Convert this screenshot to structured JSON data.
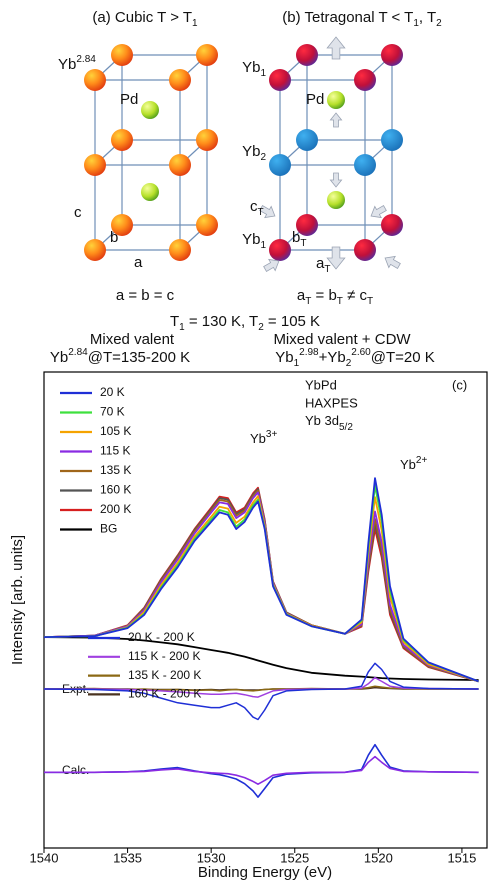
{
  "diagram": {
    "cubic": {
      "title": [
        "(a) Cubic T > T",
        "1"
      ],
      "yb_label": [
        "Yb",
        "2.84"
      ],
      "pd_label": "Pd",
      "axis_c": "c",
      "axis_b": "b",
      "axis_a": "a",
      "relation": "a = b = c"
    },
    "tetragonal": {
      "title": [
        "(b) Tetragonal T < T",
        "1",
        ", T",
        "2"
      ],
      "yb1_top": [
        "Yb",
        "1"
      ],
      "pd_label": "Pd",
      "yb2": [
        "Yb",
        "2"
      ],
      "axis_c": [
        "c",
        "T"
      ],
      "yb1_bottom": [
        "Yb",
        "1"
      ],
      "axis_b": [
        "b",
        "T"
      ],
      "axis_a": [
        "a",
        "T"
      ],
      "relation": [
        "a",
        "T",
        " = b",
        "T",
        " ≠ c",
        "T"
      ]
    },
    "temperatures": [
      "T",
      "1",
      " = 130 K, T",
      "2",
      " = 105 K"
    ],
    "cubic_phase": {
      "name": "Mixed valent",
      "valence": [
        "Yb",
        "2.84",
        "@T=135-200 K"
      ]
    },
    "tetragonal_phase": {
      "name": "Mixed valent + CDW",
      "valence": [
        "Yb",
        "1",
        "2.98",
        "+Yb",
        "2",
        "2.60",
        "@T=20 K"
      ]
    }
  },
  "chart_data": {
    "type": "line",
    "xlabel": "Binding Energy (eV)",
    "ylabel": "Intensity [arb. units]",
    "xlim": [
      1540,
      1513.5
    ],
    "xticks": [
      1540,
      1535,
      1530,
      1525,
      1520,
      1515
    ],
    "ylim": [
      0,
      100
    ],
    "annotations": {
      "yb3": [
        "Yb",
        "3+"
      ],
      "sample": "YbPd",
      "method": "HAXPES",
      "core": [
        "Yb 3d",
        "5/2"
      ],
      "panel": "(c)",
      "yb2": [
        "Yb",
        "2+"
      ],
      "expt": "Expt.",
      "calc": "Calc."
    },
    "x": [
      1540,
      1537,
      1535,
      1534,
      1533,
      1532,
      1531,
      1530,
      1529.5,
      1529,
      1528.5,
      1528,
      1527.5,
      1527.2,
      1526.8,
      1526.3,
      1525.5,
      1524,
      1522,
      1521,
      1520.6,
      1520.2,
      1519.8,
      1519.3,
      1518.5,
      1517,
      1514
    ],
    "series": [
      {
        "name": "20 K",
        "color": "#1f2fd6",
        "values": [
          44.3,
          44.5,
          46.2,
          49,
          54.4,
          59,
          64.5,
          68.5,
          70.5,
          70,
          67,
          68.5,
          71.5,
          72.8,
          67,
          55,
          49,
          46.6,
          45,
          48,
          64,
          77.7,
          70,
          55,
          44,
          39,
          35
        ]
      },
      {
        "name": "70 K",
        "color": "#3ee03e",
        "values": [
          44.3,
          44.5,
          46.3,
          49.2,
          54.7,
          59.4,
          64.9,
          69,
          71,
          70.5,
          67.5,
          69,
          72,
          73.2,
          67.3,
          55.2,
          49.1,
          46.6,
          45,
          47.8,
          63.1,
          76.1,
          68.7,
          54.1,
          43.7,
          38.9,
          35
        ]
      },
      {
        "name": "105 K",
        "color": "#f5a300",
        "values": [
          44.3,
          44.5,
          46.4,
          49.6,
          55.2,
          59.9,
          65.4,
          69.6,
          71.7,
          71.3,
          68.3,
          69.6,
          72.6,
          73.9,
          67.7,
          55.4,
          49.2,
          46.7,
          45,
          47.4,
          61.8,
          73.7,
          66.7,
          52.8,
          43.3,
          38.6,
          35
        ]
      },
      {
        "name": "115 K",
        "color": "#8a2be2",
        "values": [
          44.3,
          44.6,
          46.6,
          50,
          55.8,
          60.6,
          66.1,
          70.5,
          72.6,
          72.3,
          69.3,
          70.5,
          73.5,
          74.7,
          68.3,
          55.7,
          49.3,
          46.7,
          45,
          47,
          60.1,
          70.7,
          64.2,
          51.1,
          42.7,
          38.4,
          35
        ]
      },
      {
        "name": "135 K",
        "color": "#a0661a",
        "values": [
          44.3,
          44.6,
          46.7,
          50.2,
          56.1,
          61,
          66.5,
          70.9,
          73.1,
          72.8,
          69.8,
          70.9,
          73.9,
          75.1,
          68.6,
          55.8,
          49.4,
          46.8,
          45,
          46.8,
          59.2,
          69.1,
          62.8,
          50.2,
          42.4,
          38.2,
          35
        ]
      },
      {
        "name": "160 K",
        "color": "#555555",
        "values": [
          44.3,
          44.6,
          46.7,
          50.4,
          56.3,
          61.3,
          66.8,
          71.2,
          73.5,
          73.2,
          70.2,
          71.2,
          74.2,
          75.4,
          68.8,
          55.9,
          49.5,
          46.8,
          45,
          46.7,
          58.6,
          68.1,
          61.9,
          49.6,
          42.2,
          38.1,
          35
        ]
      },
      {
        "name": "200 K",
        "color": "#d61f1f",
        "values": [
          44.3,
          44.6,
          46.8,
          50.5,
          56.5,
          61.5,
          67,
          71.5,
          73.8,
          73.5,
          70.5,
          71.5,
          74.5,
          75.7,
          69,
          56,
          49.5,
          46.8,
          45,
          46.5,
          58,
          67,
          61,
          49,
          42,
          38,
          35
        ]
      },
      {
        "name": "BG",
        "color": "#000000",
        "values": [
          44.3,
          44.2,
          43.9,
          43.6,
          43.2,
          42.8,
          42.2,
          41.6,
          41.3,
          41,
          40.6,
          40.2,
          39.7,
          39.4,
          39,
          38.5,
          37.8,
          36.8,
          36.2,
          36,
          35.9,
          35.8,
          35.7,
          35.6,
          35.5,
          35.4,
          35.3
        ]
      }
    ],
    "difference_series": [
      {
        "name": "20 K - 200 K",
        "color": "#1f2fd6",
        "values": [
          33.4,
          33.3,
          33,
          32.5,
          31.5,
          30.5,
          30,
          29.5,
          29.5,
          30,
          30.5,
          29.5,
          27.5,
          27,
          29,
          32,
          33,
          33.3,
          33.4,
          34,
          37,
          38.8,
          37.5,
          35,
          33.8,
          33.5,
          33.4
        ]
      },
      {
        "name": "115 K - 200 K",
        "color": "#a040e0",
        "values": [
          33.4,
          33.4,
          33.3,
          33.2,
          33,
          32.8,
          32.5,
          32.3,
          32.3,
          32.4,
          32.5,
          32.2,
          31.8,
          31.7,
          32.3,
          33,
          33.3,
          33.4,
          33.4,
          33.6,
          34.5,
          35.8,
          35,
          34,
          33.6,
          33.5,
          33.4
        ]
      },
      {
        "name": "135 K - 200 K",
        "color": "#8b6914",
        "values": [
          33.4,
          33.5,
          33.3,
          33.4,
          33.2,
          33.3,
          33.1,
          33.2,
          33,
          33.2,
          33.3,
          33.1,
          33,
          33.1,
          33.3,
          33.4,
          33.4,
          33.5,
          33.4,
          33.5,
          33.7,
          34,
          33.8,
          33.6,
          33.5,
          33.4,
          33.4
        ]
      },
      {
        "name": "160 K - 200 K",
        "color": "#4a3320",
        "values": [
          33.4,
          33.4,
          33.4,
          33.3,
          33.3,
          33.3,
          33.2,
          33.3,
          33.2,
          33.3,
          33.3,
          33.2,
          33.2,
          33.2,
          33.3,
          33.4,
          33.4,
          33.4,
          33.4,
          33.4,
          33.5,
          33.7,
          33.6,
          33.5,
          33.4,
          33.4,
          33.4
        ]
      }
    ],
    "calc_series": [
      {
        "color": "#1f2fd6",
        "values": [
          15.9,
          15.9,
          16,
          16.2,
          16.6,
          16.9,
          16.2,
          15.6,
          15.4,
          15,
          14.5,
          13.5,
          12,
          10.7,
          12.5,
          14.8,
          15.5,
          15.8,
          15.9,
          16.5,
          19.5,
          21.7,
          19.5,
          17,
          16.2,
          16,
          15.9
        ]
      },
      {
        "color": "#8a2be2",
        "values": [
          15.9,
          15.9,
          16,
          16.1,
          16.4,
          16.6,
          16.1,
          15.8,
          15.7,
          15.6,
          15.3,
          14.8,
          14,
          13.4,
          14.2,
          15.3,
          15.7,
          15.9,
          15.9,
          16.3,
          18,
          19.2,
          18,
          16.7,
          16.1,
          16,
          15.9
        ]
      }
    ]
  }
}
